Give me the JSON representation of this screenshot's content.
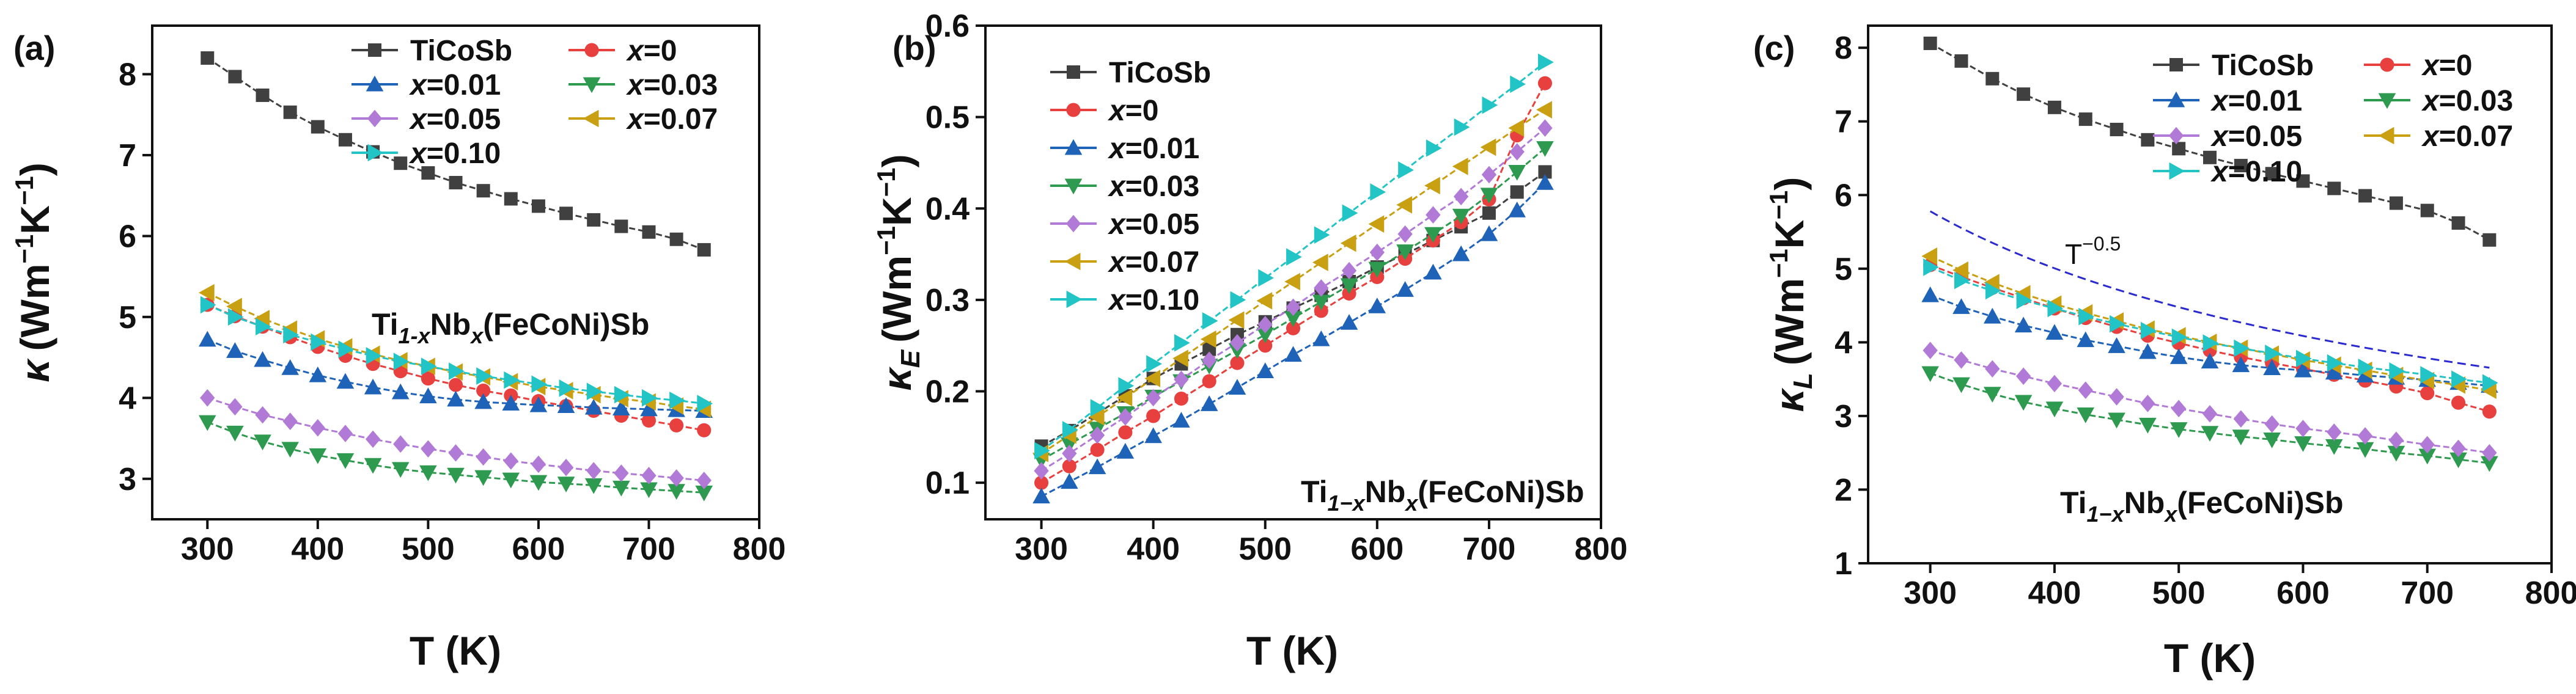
{
  "chart_data": [
    {
      "id": "a",
      "type": "line",
      "panel_label": "(a)",
      "ylabel_symbol": "κ",
      "ylabel_sub": "",
      "ylabel_unit": "(Wm",
      "ylabel_exp1": "−1",
      "ylabel_mid": "K",
      "ylabel_exp2": "−1",
      "ylabel_close": ")",
      "xlabel": "T (K)",
      "xlim": [
        250,
        800
      ],
      "ylim": [
        2.5,
        8.6
      ],
      "xticks": [
        300,
        400,
        500,
        600,
        700,
        800
      ],
      "yticks": [
        3,
        4,
        5,
        6,
        7,
        8
      ],
      "x": [
        300,
        325,
        350,
        375,
        400,
        425,
        450,
        475,
        500,
        525,
        550,
        575,
        600,
        625,
        650,
        675,
        700,
        725,
        750
      ],
      "series": [
        {
          "name": "TiCoSb",
          "color": "#404040",
          "marker": "square",
          "values": [
            8.2,
            7.97,
            7.74,
            7.53,
            7.35,
            7.19,
            7.04,
            6.9,
            6.78,
            6.66,
            6.56,
            6.46,
            6.37,
            6.28,
            6.2,
            6.12,
            6.05,
            5.96,
            5.83
          ]
        },
        {
          "name": "x=0",
          "color": "#e8403e",
          "marker": "circle",
          "values": [
            5.15,
            5.01,
            4.88,
            4.75,
            4.63,
            4.52,
            4.42,
            4.33,
            4.24,
            4.16,
            4.09,
            4.03,
            3.96,
            3.9,
            3.84,
            3.78,
            3.72,
            3.66,
            3.6
          ]
        },
        {
          "name": "x=0.01",
          "color": "#1f63b8",
          "marker": "triangle-up",
          "values": [
            4.72,
            4.58,
            4.47,
            4.37,
            4.28,
            4.2,
            4.13,
            4.07,
            4.02,
            3.98,
            3.95,
            3.93,
            3.91,
            3.9,
            3.88,
            3.87,
            3.86,
            3.85,
            3.84
          ]
        },
        {
          "name": "x=0.03",
          "color": "#2e9a4f",
          "marker": "triangle-down",
          "values": [
            3.7,
            3.57,
            3.46,
            3.37,
            3.29,
            3.23,
            3.17,
            3.12,
            3.08,
            3.05,
            3.02,
            2.99,
            2.96,
            2.94,
            2.92,
            2.89,
            2.87,
            2.85,
            2.83
          ]
        },
        {
          "name": "x=0.05",
          "color": "#b07ad6",
          "marker": "diamond",
          "values": [
            4.0,
            3.89,
            3.79,
            3.71,
            3.63,
            3.56,
            3.49,
            3.43,
            3.37,
            3.32,
            3.27,
            3.22,
            3.18,
            3.14,
            3.1,
            3.07,
            3.04,
            3.01,
            2.98
          ]
        },
        {
          "name": "x=0.07",
          "color": "#c8a012",
          "marker": "triangle-left",
          "values": [
            5.3,
            5.13,
            4.98,
            4.85,
            4.73,
            4.63,
            4.54,
            4.46,
            4.39,
            4.32,
            4.26,
            4.2,
            4.14,
            4.09,
            4.04,
            3.99,
            3.95,
            3.9,
            3.86
          ]
        },
        {
          "name": "x=0.10",
          "color": "#22c4c6",
          "marker": "triangle-right",
          "values": [
            5.15,
            5.0,
            4.88,
            4.78,
            4.69,
            4.6,
            4.52,
            4.45,
            4.39,
            4.33,
            4.27,
            4.22,
            4.17,
            4.12,
            4.08,
            4.04,
            4.0,
            3.97,
            3.93
          ]
        }
      ],
      "legend": {
        "columns": 2
      },
      "annotation": {
        "pre": "Ti",
        "sub": "1-x",
        "mid": "Nb",
        "sub2": "x",
        "post": "(FeCoNi)Sb"
      }
    },
    {
      "id": "b",
      "type": "line",
      "panel_label": "(b)",
      "ylabel_symbol": "κ",
      "ylabel_sub": "E",
      "ylabel_unit": "(Wm",
      "ylabel_exp1": "−1",
      "ylabel_mid": "K",
      "ylabel_exp2": "−1",
      "ylabel_close": ")",
      "xlabel": "T (K)",
      "xlim": [
        250,
        800
      ],
      "ylim": [
        0.06,
        0.6
      ],
      "xticks": [
        300,
        400,
        500,
        600,
        700,
        800
      ],
      "yticks": [
        0.1,
        0.2,
        0.3,
        0.4,
        0.5,
        0.6
      ],
      "ytick_labels": [
        "0.1",
        "0.2",
        "0.3",
        "0.4",
        "0.5",
        "0.6"
      ],
      "x": [
        300,
        325,
        350,
        375,
        400,
        425,
        450,
        475,
        500,
        525,
        550,
        575,
        600,
        625,
        650,
        675,
        700,
        725,
        750
      ],
      "series": [
        {
          "name": "TiCoSb",
          "color": "#404040",
          "marker": "square",
          "values": [
            0.14,
            0.157,
            0.176,
            0.195,
            0.214,
            0.23,
            0.246,
            0.262,
            0.276,
            0.291,
            0.305,
            0.32,
            0.336,
            0.35,
            0.365,
            0.38,
            0.395,
            0.418,
            0.44
          ]
        },
        {
          "name": "x=0",
          "color": "#e8403e",
          "marker": "circle",
          "values": [
            0.1,
            0.118,
            0.136,
            0.155,
            0.173,
            0.192,
            0.211,
            0.231,
            0.25,
            0.269,
            0.288,
            0.307,
            0.325,
            0.345,
            0.365,
            0.385,
            0.41,
            0.48,
            0.537
          ]
        },
        {
          "name": "x=0.01",
          "color": "#1f63b8",
          "marker": "triangle-up",
          "values": [
            0.085,
            0.101,
            0.117,
            0.134,
            0.151,
            0.168,
            0.186,
            0.204,
            0.222,
            0.24,
            0.257,
            0.275,
            0.293,
            0.311,
            0.33,
            0.35,
            0.372,
            0.398,
            0.428
          ]
        },
        {
          "name": "x=0.03",
          "color": "#2e9a4f",
          "marker": "triangle-down",
          "values": [
            0.125,
            0.142,
            0.159,
            0.176,
            0.194,
            0.211,
            0.228,
            0.245,
            0.262,
            0.28,
            0.298,
            0.316,
            0.334,
            0.353,
            0.372,
            0.392,
            0.415,
            0.44,
            0.466
          ]
        },
        {
          "name": "x=0.05",
          "color": "#b07ad6",
          "marker": "diamond",
          "values": [
            0.113,
            0.132,
            0.152,
            0.172,
            0.193,
            0.213,
            0.234,
            0.253,
            0.273,
            0.292,
            0.313,
            0.332,
            0.352,
            0.372,
            0.393,
            0.413,
            0.437,
            0.462,
            0.488
          ]
        },
        {
          "name": "x=0.07",
          "color": "#c8a012",
          "marker": "triangle-left",
          "values": [
            0.132,
            0.152,
            0.172,
            0.193,
            0.214,
            0.236,
            0.257,
            0.278,
            0.299,
            0.32,
            0.341,
            0.362,
            0.383,
            0.404,
            0.425,
            0.446,
            0.467,
            0.488,
            0.508
          ]
        },
        {
          "name": "x=0.10",
          "color": "#22c4c6",
          "marker": "triangle-right",
          "values": [
            0.135,
            0.158,
            0.182,
            0.206,
            0.23,
            0.253,
            0.277,
            0.3,
            0.324,
            0.347,
            0.371,
            0.395,
            0.418,
            0.442,
            0.466,
            0.489,
            0.513,
            0.536,
            0.56
          ]
        }
      ],
      "legend": {
        "columns": 1
      },
      "annotation": {
        "pre": "Ti",
        "sub": "1−x",
        "mid": "Nb",
        "sub2": "x",
        "post": "(FeCoNi)Sb"
      }
    },
    {
      "id": "c",
      "type": "line",
      "panel_label": "(c)",
      "ylabel_symbol": "κ",
      "ylabel_sub": "L",
      "ylabel_unit": "(Wm",
      "ylabel_exp1": "−1",
      "ylabel_mid": "K",
      "ylabel_exp2": "−1",
      "ylabel_close": ")",
      "xlabel": "T (K)",
      "xlim": [
        250,
        800
      ],
      "ylim": [
        1,
        8.3
      ],
      "xticks": [
        300,
        400,
        500,
        600,
        700,
        800
      ],
      "yticks": [
        1,
        2,
        3,
        4,
        5,
        6,
        7,
        8
      ],
      "x": [
        300,
        325,
        350,
        375,
        400,
        425,
        450,
        475,
        500,
        525,
        550,
        575,
        600,
        625,
        650,
        675,
        700,
        725,
        750
      ],
      "series": [
        {
          "name": "TiCoSb",
          "color": "#404040",
          "marker": "square",
          "values": [
            8.06,
            7.82,
            7.58,
            7.37,
            7.19,
            7.03,
            6.89,
            6.75,
            6.63,
            6.51,
            6.4,
            6.29,
            6.19,
            6.09,
            5.99,
            5.89,
            5.79,
            5.62,
            5.39
          ]
        },
        {
          "name": "x=0",
          "color": "#e8403e",
          "marker": "circle",
          "values": [
            5.05,
            4.89,
            4.74,
            4.6,
            4.46,
            4.33,
            4.21,
            4.09,
            3.99,
            3.89,
            3.8,
            3.72,
            3.64,
            3.56,
            3.48,
            3.4,
            3.31,
            3.18,
            3.06
          ]
        },
        {
          "name": "x=0.01",
          "color": "#1f63b8",
          "marker": "triangle-up",
          "values": [
            4.64,
            4.48,
            4.35,
            4.23,
            4.13,
            4.03,
            3.95,
            3.87,
            3.8,
            3.74,
            3.69,
            3.65,
            3.62,
            3.59,
            3.55,
            3.52,
            3.49,
            3.45,
            3.41
          ]
        },
        {
          "name": "x=0.03",
          "color": "#2e9a4f",
          "marker": "triangle-down",
          "values": [
            3.58,
            3.43,
            3.3,
            3.19,
            3.1,
            3.02,
            2.95,
            2.88,
            2.82,
            2.77,
            2.72,
            2.68,
            2.63,
            2.59,
            2.55,
            2.5,
            2.46,
            2.41,
            2.36
          ]
        },
        {
          "name": "x=0.05",
          "color": "#b07ad6",
          "marker": "diamond",
          "values": [
            3.89,
            3.76,
            3.64,
            3.54,
            3.44,
            3.35,
            3.26,
            3.17,
            3.1,
            3.03,
            2.96,
            2.89,
            2.83,
            2.78,
            2.73,
            2.67,
            2.61,
            2.56,
            2.5
          ]
        },
        {
          "name": "x=0.07",
          "color": "#c8a012",
          "marker": "triangle-left",
          "values": [
            5.17,
            4.98,
            4.81,
            4.66,
            4.52,
            4.4,
            4.29,
            4.18,
            4.09,
            4.0,
            3.92,
            3.84,
            3.76,
            3.69,
            3.62,
            3.55,
            3.48,
            3.42,
            3.35
          ]
        },
        {
          "name": "x=0.10",
          "color": "#22c4c6",
          "marker": "triangle-right",
          "values": [
            5.02,
            4.84,
            4.7,
            4.57,
            4.46,
            4.35,
            4.25,
            4.16,
            4.07,
            3.99,
            3.92,
            3.85,
            3.78,
            3.72,
            3.66,
            3.61,
            3.56,
            3.5,
            3.45
          ]
        }
      ],
      "reference_curve": {
        "name": "T^-0.5",
        "label_base": "T",
        "label_exp": "−0.5",
        "color": "#2a2ad0",
        "style": "dashed",
        "coefficient": 5.78,
        "x_start": 300,
        "x_end": 750
      },
      "legend": {
        "columns": 2
      },
      "annotation": {
        "pre": "Ti",
        "sub": "1−x",
        "mid": "Nb",
        "sub2": "x",
        "post": "(FeCoNi)Sb"
      }
    }
  ]
}
